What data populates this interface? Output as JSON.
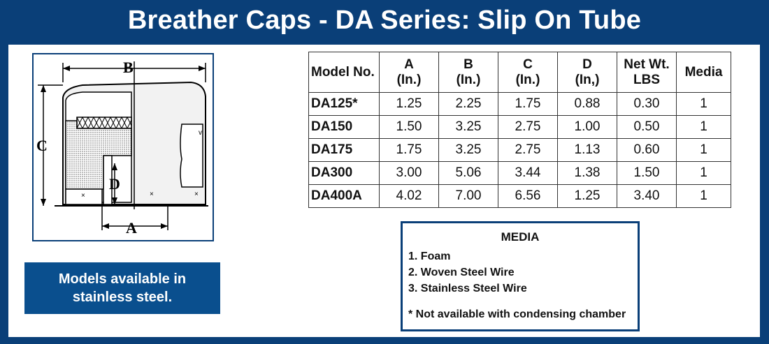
{
  "header": {
    "title": "Breather Caps - DA Series: Slip On Tube"
  },
  "diagram": {
    "labels": {
      "a": "A",
      "b": "B",
      "c": "C",
      "d": "D"
    }
  },
  "callout": {
    "line1": "Models available in",
    "line2": "stainless steel."
  },
  "table": {
    "headers": {
      "model": "Model No.",
      "a": [
        "A",
        "(In.)"
      ],
      "b": [
        "B",
        "(In.)"
      ],
      "c": [
        "C",
        "(In.)"
      ],
      "d": [
        "D",
        "(In,)"
      ],
      "wt": [
        "Net Wt.",
        "LBS"
      ],
      "media": "Media"
    },
    "rows": [
      [
        "DA125*",
        "1.25",
        "2.25",
        "1.75",
        "0.88",
        "0.30",
        "1"
      ],
      [
        "DA150",
        "1.50",
        "3.25",
        "2.75",
        "1.00",
        "0.50",
        "1"
      ],
      [
        "DA175",
        "1.75",
        "3.25",
        "2.75",
        "1.13",
        "0.60",
        "1"
      ],
      [
        "DA300",
        "3.00",
        "5.06",
        "3.44",
        "1.38",
        "1.50",
        "1"
      ],
      [
        "DA400A",
        "4.02",
        "7.00",
        "6.56",
        "1.25",
        "3.40",
        "1"
      ]
    ]
  },
  "media": {
    "title": "MEDIA",
    "items": [
      "1. Foam",
      "2. Woven Steel Wire",
      "3. Stainless Steel Wire"
    ],
    "note": "* Not available with condensing chamber"
  }
}
